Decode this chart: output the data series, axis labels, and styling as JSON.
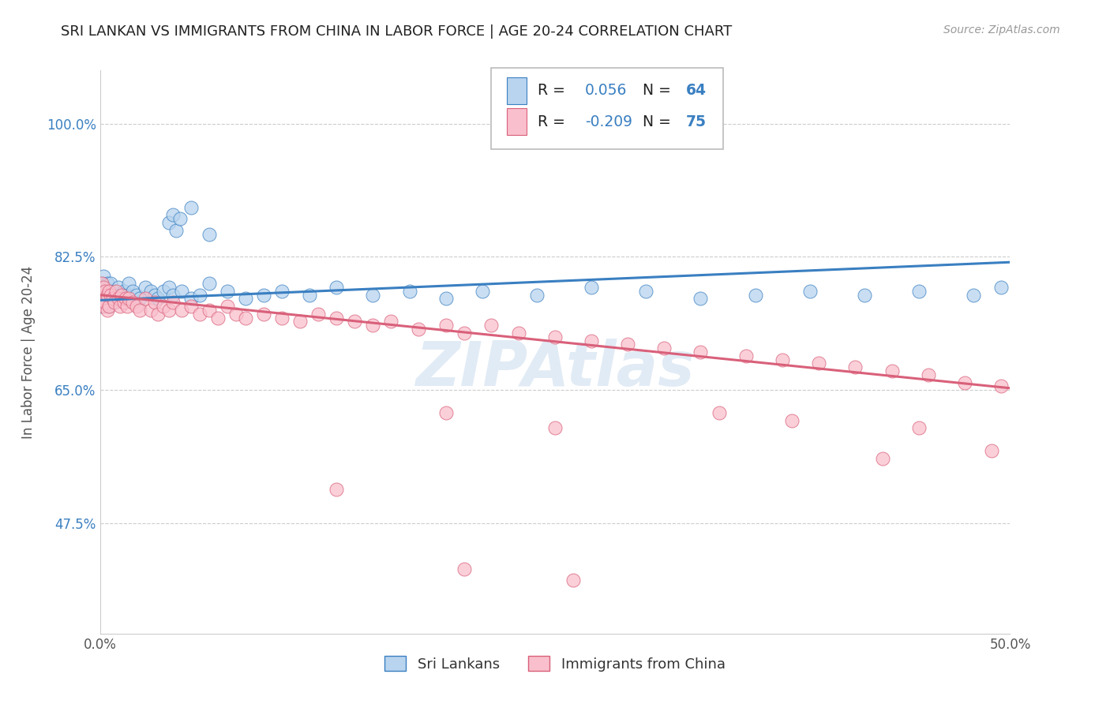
{
  "title": "SRI LANKAN VS IMMIGRANTS FROM CHINA IN LABOR FORCE | AGE 20-24 CORRELATION CHART",
  "source": "Source: ZipAtlas.com",
  "ylabel": "In Labor Force | Age 20-24",
  "xlim": [
    0.0,
    0.5
  ],
  "ylim": [
    0.33,
    1.07
  ],
  "yticks": [
    0.475,
    0.65,
    0.825,
    1.0
  ],
  "ytick_labels": [
    "47.5%",
    "65.0%",
    "82.5%",
    "100.0%"
  ],
  "xticks": [
    0.0,
    0.1,
    0.2,
    0.3,
    0.4,
    0.5
  ],
  "xtick_labels": [
    "0.0%",
    "",
    "",
    "",
    "",
    "50.0%"
  ],
  "series1_color": "#b8d4ee",
  "series2_color": "#f9bfcc",
  "line1_color": "#3a7fc1",
  "line2_color": "#d9607a",
  "R1": 0.056,
  "N1": 64,
  "R2": -0.209,
  "N2": 75,
  "legend_label1": "Sri Lankans",
  "legend_label2": "Immigrants from China",
  "background_color": "#ffffff",
  "grid_color": "#cccccc",
  "title_color": "#222222",
  "title_fontsize": 13,
  "axis_label_color": "#555555",
  "sl_x": [
    0.001,
    0.001,
    0.001,
    0.002,
    0.002,
    0.002,
    0.003,
    0.003,
    0.004,
    0.004,
    0.005,
    0.005,
    0.006,
    0.006,
    0.007,
    0.007,
    0.008,
    0.009,
    0.01,
    0.011,
    0.012,
    0.013,
    0.015,
    0.016,
    0.018,
    0.02,
    0.022,
    0.025,
    0.028,
    0.03,
    0.032,
    0.035,
    0.038,
    0.04,
    0.045,
    0.05,
    0.055,
    0.06,
    0.07,
    0.08,
    0.09,
    0.1,
    0.115,
    0.13,
    0.15,
    0.17,
    0.19,
    0.21,
    0.24,
    0.27,
    0.3,
    0.33,
    0.36,
    0.39,
    0.42,
    0.45,
    0.48,
    0.495,
    0.038,
    0.04,
    0.042,
    0.044,
    0.05,
    0.06
  ],
  "sl_y": [
    0.775,
    0.79,
    0.76,
    0.78,
    0.77,
    0.8,
    0.775,
    0.785,
    0.77,
    0.79,
    0.78,
    0.76,
    0.775,
    0.79,
    0.765,
    0.78,
    0.775,
    0.77,
    0.785,
    0.775,
    0.77,
    0.78,
    0.775,
    0.79,
    0.78,
    0.775,
    0.77,
    0.785,
    0.78,
    0.775,
    0.77,
    0.78,
    0.785,
    0.775,
    0.78,
    0.77,
    0.775,
    0.79,
    0.78,
    0.77,
    0.775,
    0.78,
    0.775,
    0.785,
    0.775,
    0.78,
    0.77,
    0.78,
    0.775,
    0.785,
    0.78,
    0.77,
    0.775,
    0.78,
    0.775,
    0.78,
    0.775,
    0.785,
    0.87,
    0.88,
    0.86,
    0.875,
    0.89,
    0.855
  ],
  "ch_x": [
    0.001,
    0.001,
    0.002,
    0.002,
    0.003,
    0.003,
    0.004,
    0.004,
    0.005,
    0.005,
    0.006,
    0.007,
    0.008,
    0.009,
    0.01,
    0.011,
    0.012,
    0.013,
    0.014,
    0.015,
    0.016,
    0.018,
    0.02,
    0.022,
    0.025,
    0.028,
    0.03,
    0.032,
    0.035,
    0.038,
    0.04,
    0.045,
    0.05,
    0.055,
    0.06,
    0.065,
    0.07,
    0.075,
    0.08,
    0.09,
    0.1,
    0.11,
    0.12,
    0.13,
    0.14,
    0.15,
    0.16,
    0.175,
    0.19,
    0.2,
    0.215,
    0.23,
    0.25,
    0.27,
    0.29,
    0.31,
    0.33,
    0.355,
    0.375,
    0.395,
    0.415,
    0.435,
    0.455,
    0.475,
    0.495,
    0.19,
    0.25,
    0.34,
    0.38,
    0.43,
    0.13,
    0.2,
    0.26,
    0.45,
    0.49
  ],
  "ch_y": [
    0.79,
    0.77,
    0.785,
    0.76,
    0.78,
    0.765,
    0.775,
    0.755,
    0.78,
    0.76,
    0.775,
    0.77,
    0.765,
    0.78,
    0.77,
    0.76,
    0.775,
    0.765,
    0.77,
    0.76,
    0.77,
    0.765,
    0.76,
    0.755,
    0.77,
    0.755,
    0.765,
    0.75,
    0.76,
    0.755,
    0.765,
    0.755,
    0.76,
    0.75,
    0.755,
    0.745,
    0.76,
    0.75,
    0.745,
    0.75,
    0.745,
    0.74,
    0.75,
    0.745,
    0.74,
    0.735,
    0.74,
    0.73,
    0.735,
    0.725,
    0.735,
    0.725,
    0.72,
    0.715,
    0.71,
    0.705,
    0.7,
    0.695,
    0.69,
    0.685,
    0.68,
    0.675,
    0.67,
    0.66,
    0.655,
    0.62,
    0.6,
    0.62,
    0.61,
    0.56,
    0.52,
    0.415,
    0.4,
    0.6,
    0.57
  ]
}
